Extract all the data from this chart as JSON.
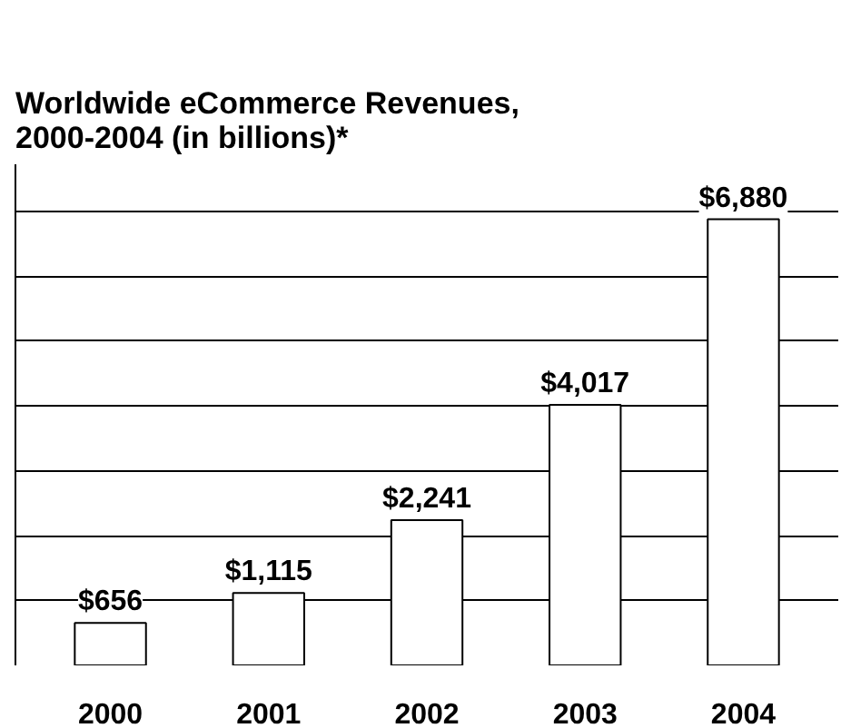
{
  "chart_data": {
    "type": "bar",
    "title": "Worldwide eCommerce Revenues,\n2000-2004 (in billions)*",
    "categories": [
      "2000",
      "2001",
      "2002",
      "2003",
      "2004"
    ],
    "values": [
      656,
      1115,
      2241,
      4017,
      6880
    ],
    "value_labels": [
      "$656",
      "$1,115",
      "$2,241",
      "$4,017",
      "$6,880"
    ],
    "color": "#ffffff",
    "grid": "y",
    "tick_labels": "x"
  }
}
